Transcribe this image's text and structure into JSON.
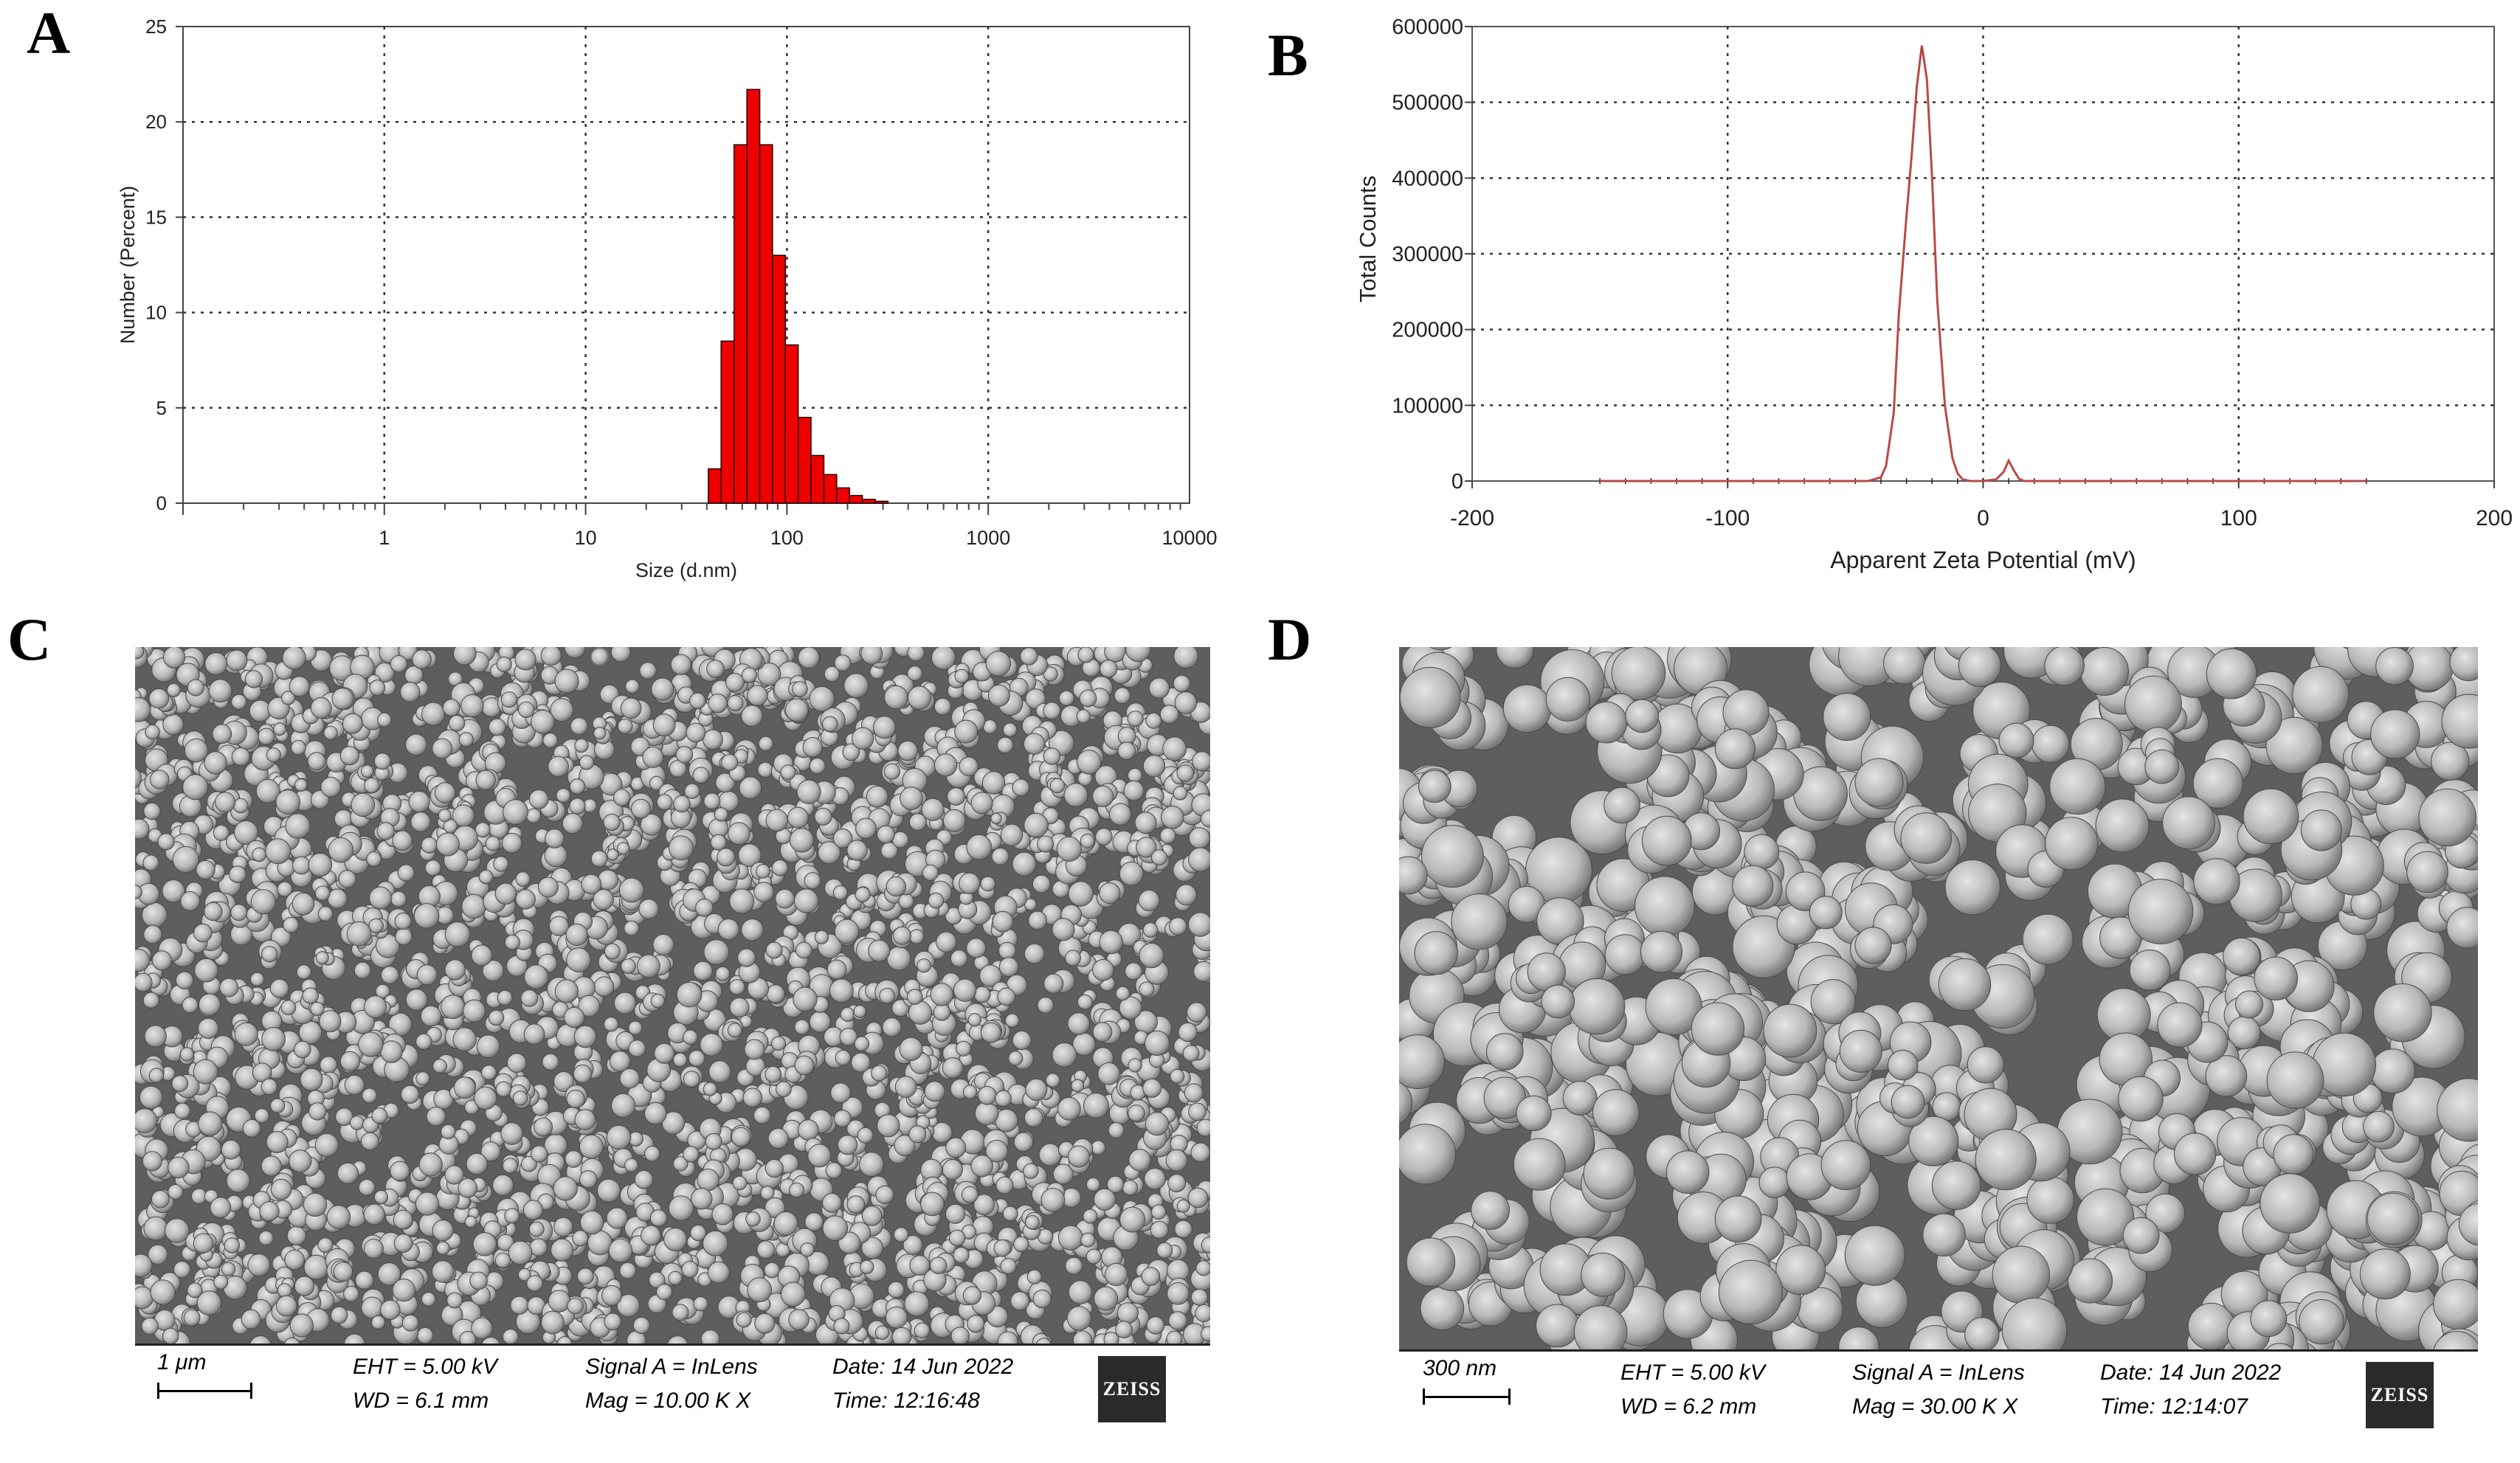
{
  "panels": {
    "a": "A",
    "b": "B",
    "c": "C",
    "d": "D"
  },
  "chart_data": [
    {
      "type": "bar",
      "panel": "A",
      "xlabel": "Size (d.nm)",
      "ylabel": "Number (Percent)",
      "x_scale": "log",
      "xlim": [
        0.1,
        10000
      ],
      "ylim": [
        0,
        25
      ],
      "x_ticks": [
        "1",
        "10",
        "100",
        "1000",
        "10000"
      ],
      "y_ticks": [
        "0",
        "5",
        "10",
        "15",
        "20",
        "25"
      ],
      "grid": true,
      "color": "#ee0000",
      "x": [
        43.8,
        50.7,
        58.8,
        68.1,
        78.8,
        91.3,
        105.7,
        122.4,
        141.8,
        164.2,
        190.1,
        220.2,
        255.0,
        295.3
      ],
      "values": [
        1.8,
        8.5,
        18.8,
        21.7,
        18.8,
        13.0,
        8.3,
        4.5,
        2.5,
        1.5,
        0.8,
        0.4,
        0.2,
        0.1
      ]
    },
    {
      "type": "line",
      "panel": "B",
      "xlabel": "Apparent Zeta Potential (mV)",
      "ylabel": "Total Counts",
      "xlim": [
        -200,
        200
      ],
      "ylim": [
        0,
        600000
      ],
      "x_ticks": [
        "-200",
        "-100",
        "0",
        "100",
        "200"
      ],
      "y_ticks": [
        "0",
        "100000",
        "200000",
        "300000",
        "400000",
        "500000",
        "600000"
      ],
      "grid": true,
      "color": "#b84a4a",
      "x": [
        -150,
        -45,
        -40,
        -38,
        -35,
        -33,
        -30,
        -28,
        -26,
        -24,
        -22,
        -20,
        -18,
        -15,
        -12,
        -10,
        -8,
        -5,
        0,
        5,
        8,
        10,
        12,
        14,
        16,
        20,
        150
      ],
      "y": [
        0,
        0,
        5000,
        20000,
        90000,
        220000,
        350000,
        430000,
        520000,
        575000,
        530000,
        400000,
        240000,
        100000,
        30000,
        10000,
        2000,
        0,
        0,
        2000,
        12000,
        27000,
        14000,
        3000,
        0,
        0,
        0
      ]
    }
  ],
  "sem": [
    {
      "panel": "C",
      "scale": "1 μm",
      "eht": "EHT =  5.00 kV",
      "wd": "WD =  6.1 mm",
      "signal": "Signal A = InLens",
      "mag": "Mag =   10.00 K X",
      "date": "Date: 14 Jun 2022",
      "time": "Time: 12:16:48",
      "logo": "ZEISS"
    },
    {
      "panel": "D",
      "scale": "300 nm",
      "eht": "EHT =  5.00 kV",
      "wd": "WD =  6.2 mm",
      "signal": "Signal A = InLens",
      "mag": "Mag =   30.00 K X",
      "date": "Date: 14 Jun 2022",
      "time": "Time: 12:14:07",
      "logo": "ZEISS"
    }
  ]
}
